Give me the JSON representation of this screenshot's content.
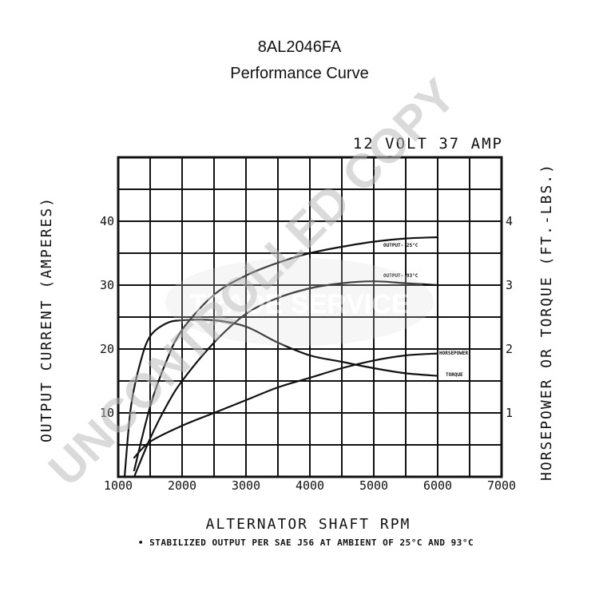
{
  "header": {
    "model": "8AL2046FA",
    "subtitle": "Performance Curve"
  },
  "chart_data": {
    "type": "line",
    "spec": "12 VOLT 37 AMP",
    "xlabel": "ALTERNATOR SHAFT RPM",
    "ylabel_left": "OUTPUT CURRENT (AMPERES)",
    "ylabel_right": "HORSEPOWER OR TORQUE (FT.-LBS.)",
    "xlim": [
      1000,
      7000
    ],
    "ylim_left": [
      0,
      50
    ],
    "ylim_right": [
      0,
      5
    ],
    "x_ticks": [
      "1000",
      "2000",
      "3000",
      "4000",
      "5000",
      "6000",
      "7000"
    ],
    "y_ticks_left": [
      "10",
      "20",
      "30",
      "40"
    ],
    "y_ticks_right": [
      "1",
      "2",
      "3",
      "4"
    ],
    "grid": true,
    "series": [
      {
        "name": "OUTPUT- 25°C",
        "axis": "left",
        "points": [
          [
            1250,
            1
          ],
          [
            1500,
            11
          ],
          [
            1750,
            18
          ],
          [
            2000,
            23
          ],
          [
            2500,
            28.5
          ],
          [
            3000,
            31.5
          ],
          [
            3500,
            33.5
          ],
          [
            4000,
            35
          ],
          [
            4500,
            36
          ],
          [
            5000,
            36.8
          ],
          [
            5500,
            37.3
          ],
          [
            6000,
            37.5
          ]
        ]
      },
      {
        "name": "OUTPUT- 93°C",
        "axis": "left",
        "points": [
          [
            1250,
            0
          ],
          [
            1500,
            6
          ],
          [
            1750,
            11
          ],
          [
            2000,
            15
          ],
          [
            2500,
            21
          ],
          [
            3000,
            25.5
          ],
          [
            3500,
            28
          ],
          [
            4000,
            29.5
          ],
          [
            4500,
            30.3
          ],
          [
            5000,
            30.6
          ],
          [
            5500,
            30.3
          ],
          [
            6000,
            30
          ]
        ]
      },
      {
        "name": "HORSEPOWER",
        "axis": "right",
        "points": [
          [
            1250,
            0.3
          ],
          [
            1500,
            0.55
          ],
          [
            2000,
            0.8
          ],
          [
            2500,
            1.0
          ],
          [
            3000,
            1.2
          ],
          [
            3500,
            1.4
          ],
          [
            4000,
            1.55
          ],
          [
            4500,
            1.7
          ],
          [
            5000,
            1.82
          ],
          [
            5500,
            1.9
          ],
          [
            6000,
            1.93
          ]
        ]
      },
      {
        "name": "TORQUE",
        "axis": "right",
        "points": [
          [
            1100,
            0
          ],
          [
            1200,
            1.1
          ],
          [
            1350,
            1.8
          ],
          [
            1500,
            2.2
          ],
          [
            1750,
            2.4
          ],
          [
            2000,
            2.45
          ],
          [
            2500,
            2.45
          ],
          [
            3000,
            2.35
          ],
          [
            3500,
            2.1
          ],
          [
            4000,
            1.9
          ],
          [
            4500,
            1.8
          ],
          [
            5000,
            1.7
          ],
          [
            5500,
            1.62
          ],
          [
            6000,
            1.58
          ]
        ]
      }
    ],
    "footnote": "• STABILIZED OUTPUT PER SAE J56 AT AMBIENT OF 25°C AND 93°C"
  },
  "watermark": {
    "text": "UNCONTROLLED COPY",
    "badge": "TRADE SERVICE",
    "color": "#bdbdbd"
  }
}
